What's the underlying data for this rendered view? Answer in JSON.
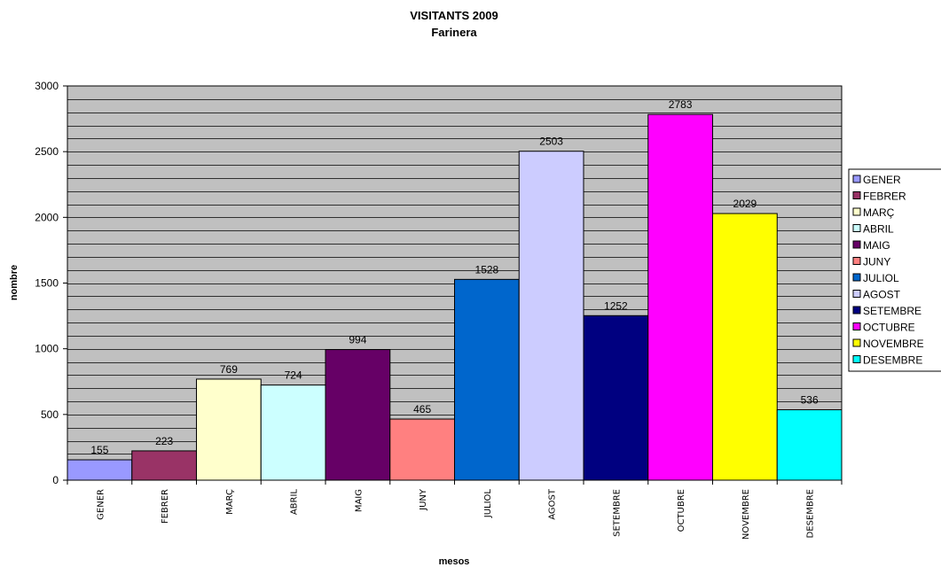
{
  "chart_data": {
    "type": "bar",
    "title": "VISITANTS 2009",
    "subtitle": "Farinera",
    "xlabel": "mesos",
    "ylabel": "nombre",
    "ylim": [
      0,
      3000
    ],
    "yticks": [
      0,
      500,
      1000,
      1500,
      2000,
      2500,
      3000
    ],
    "grid": true,
    "legend_position": "right",
    "categories": [
      "GENER",
      "FEBRER",
      "MARÇ",
      "ABRIL",
      "MAIG",
      "JUNY",
      "JULIOL",
      "AGOST",
      "SETEMBRE",
      "OCTUBRE",
      "NOVEMBRE",
      "DESEMBRE"
    ],
    "values": [
      155,
      223,
      769,
      724,
      994,
      465,
      1528,
      2503,
      1252,
      2783,
      2029,
      536
    ],
    "colors": [
      "#9999ff",
      "#993366",
      "#ffffcc",
      "#ccffff",
      "#660066",
      "#ff8080",
      "#0066cc",
      "#ccccff",
      "#000080",
      "#ff00ff",
      "#ffff00",
      "#00ffff"
    ],
    "plot_background": "#c0c0c0"
  }
}
